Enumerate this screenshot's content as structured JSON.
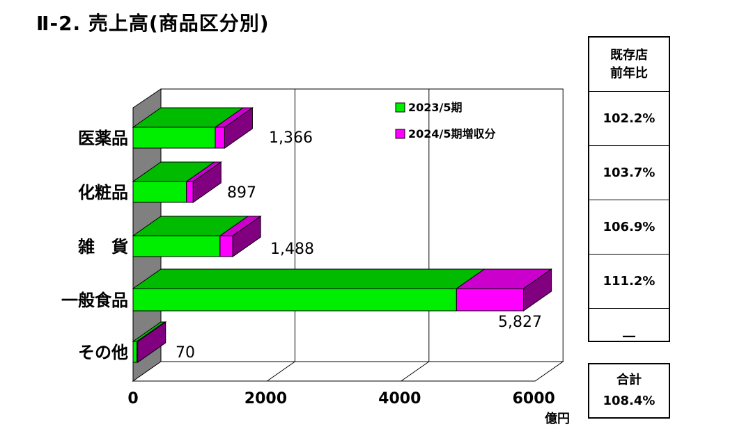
{
  "title": "Ⅱ-2. 売上高(商品区分別)",
  "unit": "億円",
  "legend": [
    {
      "label": "2023/5期",
      "color": "#00ee00"
    },
    {
      "label": "2024/5期増収分",
      "color": "#ff00ff"
    }
  ],
  "table": {
    "header_line1": "既存店",
    "header_line2": "前年比",
    "rows": [
      "102.2%",
      "103.7%",
      "106.9%",
      "111.2%",
      "―"
    ],
    "total_label": "合計",
    "total_value": "108.4%"
  },
  "chart_data": {
    "type": "bar",
    "orientation": "horizontal",
    "stacked": true,
    "categories": [
      "医薬品",
      "化粧品",
      "雑　貨",
      "一般食品",
      "その他"
    ],
    "series": [
      {
        "name": "2023/5期",
        "values": [
          1226,
          798,
          1298,
          4827,
          58
        ]
      },
      {
        "name": "2024/5期増収分",
        "values": [
          140,
          99,
          190,
          1000,
          12
        ]
      }
    ],
    "totals": [
      "1,366",
      "897",
      "1,488",
      "5,827",
      "70"
    ],
    "xlim": [
      0,
      6000
    ],
    "xticks": [
      "0",
      "2000",
      "4000",
      "6000"
    ],
    "grid": true,
    "legend_position": "top-right",
    "colors": {
      "front_base": "#00ee00",
      "top_base": "#00bb00",
      "front_inc": "#ff00ff",
      "top_inc": "#cc00cc",
      "side": "#800080",
      "wall": "#808080",
      "floor": "#ffffff"
    }
  }
}
